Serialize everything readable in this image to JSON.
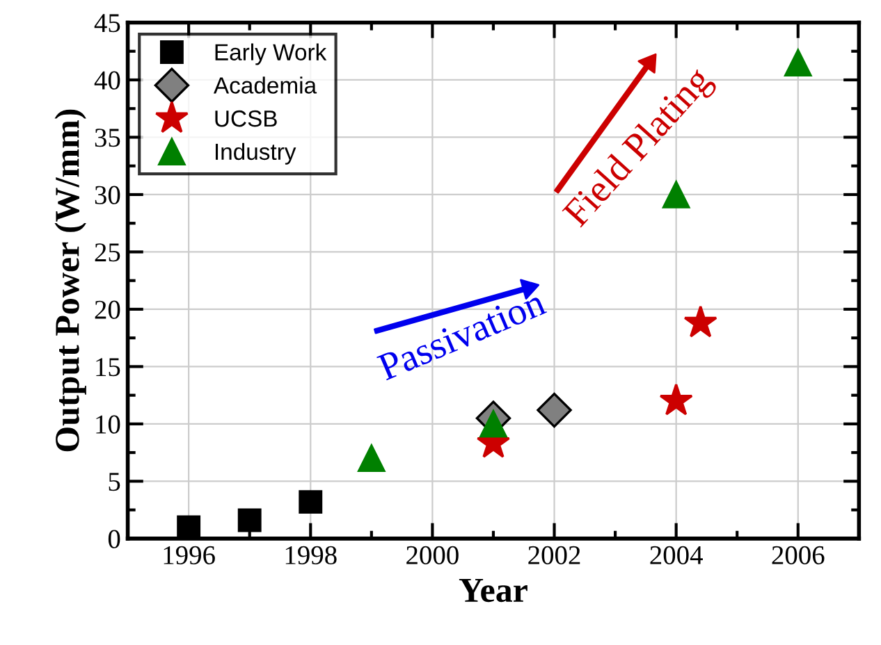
{
  "chart_data": {
    "type": "scatter",
    "xlabel": "Year",
    "ylabel": "Output Power (W/mm)",
    "xlim": [
      1995,
      2007
    ],
    "xticks": [
      1996,
      1998,
      2000,
      2002,
      2004,
      2006
    ],
    "ylim": [
      0,
      45
    ],
    "yticks": [
      0,
      5,
      10,
      15,
      20,
      25,
      30,
      35,
      40,
      45
    ],
    "grid": true,
    "legend": "top left",
    "series": [
      {
        "name": "Early Work",
        "color": "#000000",
        "marker": "square",
        "x": [
          1996,
          1997,
          1998
        ],
        "values": [
          1.0,
          1.6,
          3.2
        ]
      },
      {
        "name": "Academia",
        "color": "#808080",
        "marker": "diamond",
        "x": [
          2001,
          2002
        ],
        "values": [
          10.5,
          11.2
        ]
      },
      {
        "name": "UCSB",
        "color": "#cc0000",
        "marker": "star",
        "x": [
          2001,
          2004,
          2004.4
        ],
        "values": [
          8.3,
          12.0,
          18.8
        ]
      },
      {
        "name": "Industry",
        "color": "#008000",
        "marker": "triangle",
        "x": [
          1999,
          2001,
          2004,
          2006
        ],
        "values": [
          7.0,
          10.0,
          30.0,
          41.5
        ]
      }
    ],
    "annotations": [
      "Passivation",
      "Field Plating"
    ]
  }
}
